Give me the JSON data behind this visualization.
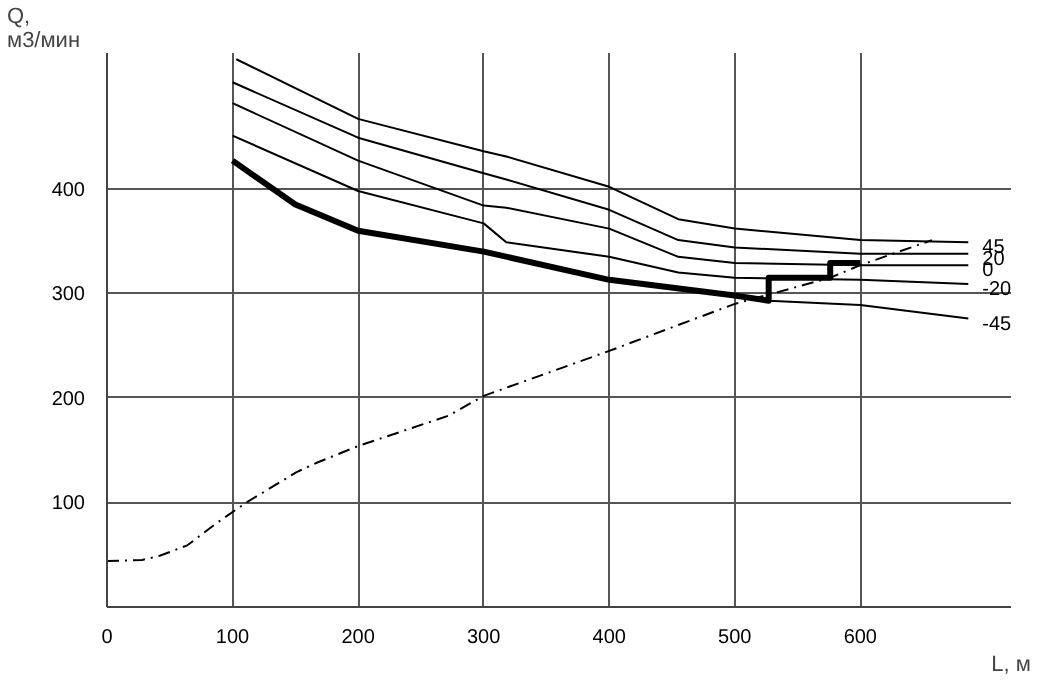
{
  "chart_data": {
    "type": "line",
    "xlabel": "L, м",
    "ylabel": "Q,\nм3/мин",
    "xlim": [
      0,
      720
    ],
    "ylim": [
      0,
      530
    ],
    "xticks": [
      0,
      100,
      200,
      300,
      400,
      500,
      600
    ],
    "yticks": [
      100,
      200,
      300,
      400
    ],
    "grid": true,
    "marker": "none",
    "series": [
      {
        "name": "45",
        "color": "#000000",
        "line_style": "solid",
        "x": [
          103,
          200,
          300,
          318,
          400,
          455,
          500,
          600,
          686
        ],
        "values": [
          524,
          467,
          436,
          431,
          402,
          371,
          362,
          351,
          349
        ]
      },
      {
        "name": "20",
        "color": "#000000",
        "line_style": "solid",
        "x": [
          100,
          200,
          300,
          318,
          400,
          455,
          500,
          600,
          686
        ],
        "values": [
          502,
          449,
          415,
          409,
          380,
          351,
          344,
          338,
          338
        ]
      },
      {
        "name": "0",
        "color": "#000000",
        "line_style": "solid",
        "x": [
          100,
          200,
          300,
          318,
          400,
          455,
          500,
          600,
          686
        ],
        "values": [
          482,
          427,
          384,
          382,
          362,
          335,
          329,
          327,
          327
        ]
      },
      {
        "name": "-20",
        "color": "#000000",
        "line_style": "solid",
        "x": [
          100,
          200,
          300,
          318,
          400,
          455,
          500,
          600,
          686
        ],
        "values": [
          451,
          398,
          367,
          349,
          335,
          320,
          315,
          313,
          309
        ]
      },
      {
        "name": "-45",
        "color": "#000000",
        "line_style": "solid",
        "x": [
          527,
          600,
          686
        ],
        "values": [
          293,
          289,
          276
        ]
      },
      {
        "color": "#000000",
        "line_style": "solid",
        "x": [
          100,
          150,
          200,
          300,
          400,
          500,
          527,
          527,
          576,
          576,
          600
        ],
        "values": [
          427,
          385,
          360,
          340,
          313,
          298,
          293,
          315,
          315,
          329,
          329
        ]
      },
      {
        "color": "#000000",
        "line_style": "dashed",
        "x": [
          0,
          28,
          42,
          64,
          87,
          111,
          151,
          167,
          200,
          272,
          300,
          400,
          500,
          576,
          600,
          657
        ],
        "values": [
          44,
          45,
          49,
          59,
          80,
          100,
          129,
          138,
          154,
          183,
          202,
          245,
          290,
          315,
          327,
          351
        ]
      }
    ]
  }
}
